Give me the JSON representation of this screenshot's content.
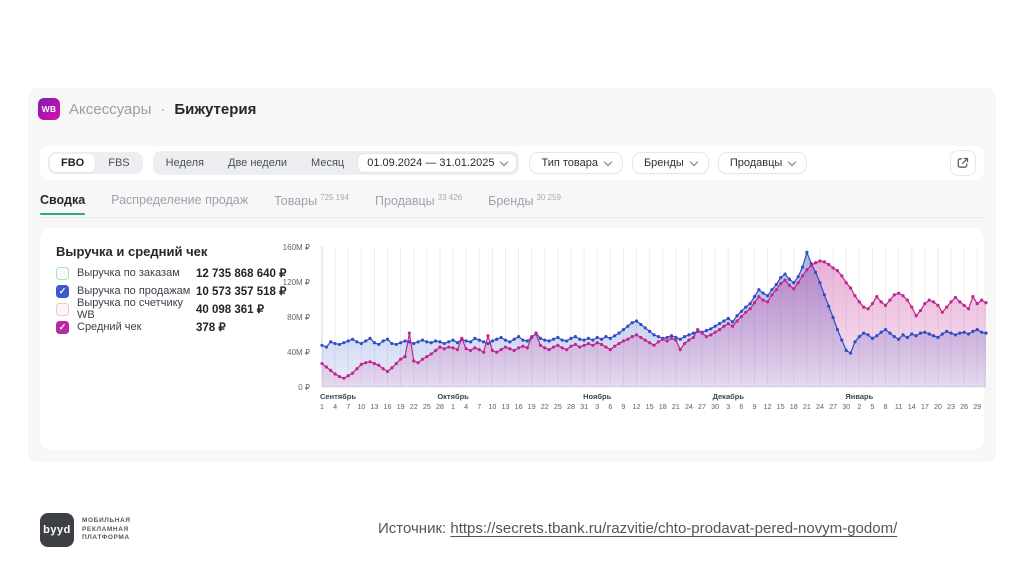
{
  "header": {
    "logo_text": "WB",
    "category": "Аксессуары",
    "separator": "·",
    "subcategory": "Бижутерия"
  },
  "filters": {
    "fulfillment": {
      "options": [
        "FBO",
        "FBS"
      ],
      "selected": "FBO"
    },
    "period": {
      "options": [
        {
          "name": "week",
          "label": "Неделя"
        },
        {
          "name": "two-weeks",
          "label": "Две недели"
        },
        {
          "name": "month",
          "label": "Месяц"
        }
      ]
    },
    "date_range": "01.09.2024 — 31.01.2025",
    "dropdowns": [
      {
        "name": "product-type",
        "label": "Тип товара"
      },
      {
        "name": "brands",
        "label": "Бренды"
      },
      {
        "name": "sellers",
        "label": "Продавцы"
      }
    ]
  },
  "tabs": [
    {
      "name": "summary",
      "label": "Сводка",
      "badge": "",
      "active": true
    },
    {
      "name": "sales-distribution",
      "label": "Распределение продаж",
      "badge": "",
      "active": false
    },
    {
      "name": "products",
      "label": "Товары",
      "badge": "725 194",
      "active": false
    },
    {
      "name": "sellers",
      "label": "Продавцы",
      "badge": "33 426",
      "active": false
    },
    {
      "name": "brands",
      "label": "Бренды",
      "badge": "30 259",
      "active": false
    }
  ],
  "metrics_panel": {
    "title": "Выручка и средний чек",
    "items": [
      {
        "name": "revenue-by-orders",
        "label": "Выручка по заказам",
        "value": "12 735 868 640 ₽",
        "checked": false,
        "color": "#a9ddc9",
        "box_bg": "#f4fbf8"
      },
      {
        "name": "revenue-by-sales",
        "label": "Выручка по продажам",
        "value": "10 573 357 518 ₽",
        "checked": true,
        "color": "#3c5ad0",
        "box_bg": "#ffffff"
      },
      {
        "name": "revenue-wb-counter",
        "label": "Выручка по счетчику WB",
        "value": "40 098 361 ₽",
        "checked": false,
        "color": "#f0c5cd",
        "box_bg": "#fdf6f7"
      },
      {
        "name": "average-check",
        "label": "Средний чек",
        "value": "378 ₽",
        "checked": true,
        "color": "#ba28a2",
        "box_bg": "#ffffff"
      }
    ]
  },
  "chart_data": {
    "type": "line",
    "title": "Выручка и средний чек",
    "unit": "M ₽",
    "ylim": [
      0,
      160
    ],
    "y_ticks": [
      "160M ₽",
      "120M ₽",
      "80M ₽",
      "40M ₽",
      "0 ₽"
    ],
    "grid": "vertical",
    "legend_position": "left-panel-checkboxes",
    "tick_step": 3,
    "day_ticks": [
      "1",
      "4",
      "7",
      "10",
      "13",
      "16",
      "19",
      "22",
      "25",
      "28",
      "1",
      "4",
      "7",
      "10",
      "13",
      "16",
      "19",
      "22",
      "25",
      "28",
      "31",
      "3",
      "6",
      "9",
      "12",
      "15",
      "18",
      "21",
      "24",
      "27",
      "30",
      "3",
      "6",
      "9",
      "12",
      "15",
      "18",
      "21",
      "24",
      "27",
      "30",
      "2",
      "5",
      "8",
      "11",
      "14",
      "17",
      "20",
      "23",
      "26",
      "29"
    ],
    "months": [
      {
        "label": "Сентябрь",
        "day_index": 0
      },
      {
        "label": "Октябрь",
        "day_index": 30
      },
      {
        "label": "Ноябрь",
        "day_index": 63
      },
      {
        "label": "Декабрь",
        "day_index": 93
      },
      {
        "label": "Январь",
        "day_index": 123
      }
    ],
    "series": [
      {
        "name": "Выручка по продажам",
        "color": "#2d4ec4",
        "values": [
          48,
          46,
          52,
          50,
          49,
          51,
          53,
          55,
          52,
          50,
          53,
          56,
          51,
          49,
          53,
          55,
          50,
          49,
          51,
          53,
          52,
          50,
          52,
          54,
          52,
          51,
          53,
          52,
          50,
          52,
          54,
          51,
          55,
          53,
          52,
          56,
          54,
          52,
          50,
          53,
          55,
          57,
          54,
          52,
          55,
          58,
          54,
          53,
          57,
          62,
          56,
          54,
          53,
          55,
          57,
          54,
          53,
          56,
          58,
          55,
          54,
          56,
          54,
          57,
          55,
          58,
          56,
          59,
          62,
          66,
          70,
          74,
          76,
          72,
          68,
          64,
          60,
          58,
          56,
          57,
          59,
          57,
          55,
          58,
          60,
          62,
          64,
          63,
          65,
          67,
          70,
          73,
          76,
          79,
          75,
          82,
          87,
          92,
          96,
          104,
          112,
          108,
          105,
          112,
          118,
          126,
          130,
          124,
          120,
          127,
          138,
          155,
          142,
          132,
          120,
          106,
          93,
          80,
          66,
          54,
          42,
          39,
          52,
          58,
          62,
          60,
          56,
          59,
          63,
          66,
          62,
          58,
          55,
          60,
          57,
          61,
          59,
          62,
          63,
          61,
          59,
          57,
          61,
          64,
          62,
          60,
          62,
          63,
          61,
          64,
          66,
          63,
          62
        ]
      },
      {
        "name": "Средний чек",
        "color": "#c02590",
        "values": [
          27,
          23,
          19,
          15,
          12,
          10,
          13,
          16,
          21,
          26,
          28,
          29,
          27,
          25,
          21,
          18,
          22,
          27,
          32,
          35,
          62,
          30,
          28,
          32,
          35,
          38,
          42,
          46,
          44,
          46,
          45,
          43,
          56,
          44,
          42,
          45,
          43,
          40,
          59,
          42,
          40,
          43,
          46,
          44,
          42,
          45,
          47,
          45,
          58,
          61,
          48,
          45,
          43,
          46,
          48,
          45,
          43,
          47,
          49,
          46,
          48,
          50,
          48,
          51,
          49,
          46,
          43,
          47,
          50,
          53,
          55,
          58,
          60,
          57,
          54,
          51,
          48,
          52,
          55,
          53,
          56,
          54,
          43,
          50,
          54,
          57,
          66,
          62,
          58,
          60,
          63,
          66,
          70,
          73,
          70,
          76,
          81,
          86,
          90,
          97,
          104,
          100,
          98,
          106,
          112,
          119,
          123,
          117,
          113,
          120,
          128,
          135,
          140,
          143,
          145,
          144,
          141,
          137,
          134,
          128,
          120,
          114,
          105,
          98,
          92,
          90,
          96,
          104,
          98,
          94,
          100,
          106,
          108,
          105,
          100,
          92,
          82,
          88,
          96,
          100,
          98,
          94,
          86,
          92,
          98,
          103,
          98,
          94,
          90,
          104,
          96,
          100,
          97
        ]
      }
    ]
  },
  "footer": {
    "logo_text": "byyd",
    "logo_caption_lines": [
      "МОБИЛЬНАЯ",
      "РЕКЛАМНАЯ",
      "ПЛАТФОРМА"
    ],
    "source_label": "Источник:",
    "source_url": "https://secrets.tbank.ru/razvitie/chto-prodavat-pered-novym-godom/"
  }
}
